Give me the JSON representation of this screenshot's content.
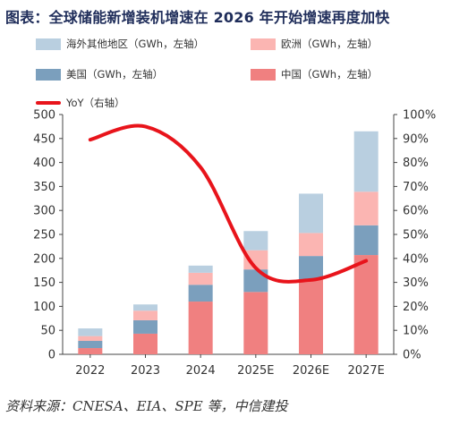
{
  "figure": {
    "title": "图表：全球储能新增装机增速在 2026 年开始增速再度加快",
    "source": "资料来源：CNESA、EIA、SPE 等，中信建投"
  },
  "chart_data": {
    "type": "bar",
    "stacked": true,
    "categories": [
      "2022",
      "2023",
      "2024",
      "2025E",
      "2026E",
      "2027E"
    ],
    "series": [
      {
        "name": "中国（GWh，左轴）",
        "color": "#f08080",
        "values": [
          13,
          43,
          110,
          130,
          155,
          207
        ]
      },
      {
        "name": "美国（GWh，左轴）",
        "color": "#7b9fbd",
        "values": [
          15,
          28,
          35,
          47,
          50,
          62
        ]
      },
      {
        "name": "欧洲（GWh，左轴）",
        "color": "#fbb5b2",
        "values": [
          10,
          20,
          25,
          40,
          48,
          70
        ]
      },
      {
        "name": "海外其他地区（GWh，左轴）",
        "color": "#b9cfe0",
        "values": [
          16,
          13,
          15,
          40,
          82,
          126
        ]
      }
    ],
    "line_series": {
      "name": "YoY（右轴）",
      "color": "#e8141b",
      "axis": "right",
      "values": [
        0.895,
        0.95,
        0.78,
        0.36,
        0.31,
        0.39
      ]
    },
    "y_left": {
      "min": 0,
      "max": 500,
      "ticks": [
        0,
        50,
        100,
        150,
        200,
        250,
        300,
        350,
        400,
        450,
        500
      ]
    },
    "y_right": {
      "min": 0,
      "max": 1.0,
      "ticks": [
        "0%",
        "10%",
        "20%",
        "30%",
        "40%",
        "50%",
        "60%",
        "70%",
        "80%",
        "90%",
        "100%"
      ]
    },
    "xlabel": "",
    "ylabel": "",
    "grid": false,
    "legend": [
      {
        "label": "海外其他地区（GWh，左轴）",
        "color": "#b9cfe0",
        "kind": "bar"
      },
      {
        "label": "欧洲（GWh，左轴）",
        "color": "#fbb5b2",
        "kind": "bar"
      },
      {
        "label": "美国（GWh，左轴）",
        "color": "#7b9fbd",
        "kind": "bar"
      },
      {
        "label": "中国（GWh，左轴）",
        "color": "#f08080",
        "kind": "bar"
      },
      {
        "label": "YoY（右轴）",
        "color": "#e8141b",
        "kind": "line"
      }
    ]
  }
}
